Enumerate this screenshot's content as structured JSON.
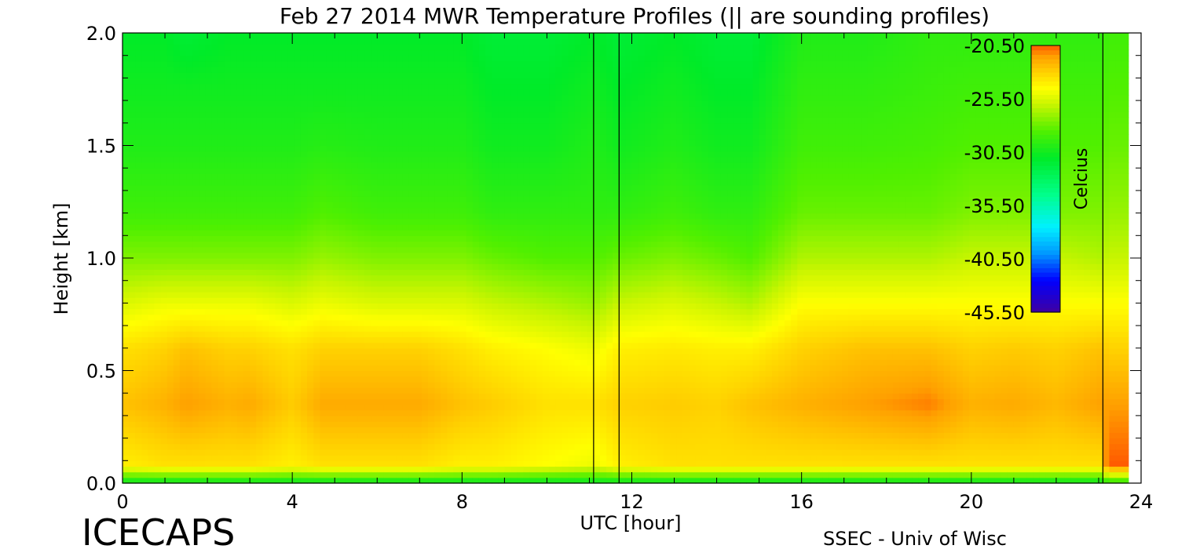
{
  "chart_data": {
    "type": "heatmap",
    "title": "Feb 27 2014 MWR Temperature Profiles (|| are sounding profiles)",
    "xlabel": "UTC [hour]",
    "ylabel": "Height [km]",
    "xlim": [
      0,
      24
    ],
    "ylim": [
      0,
      2.0
    ],
    "x_ticks": [
      "0",
      "4",
      "8",
      "12",
      "16",
      "20",
      "24"
    ],
    "y_ticks": [
      "0.0",
      "0.5",
      "1.0",
      "1.5",
      "2.0"
    ],
    "colorbar": {
      "label": "Celcius",
      "ticks": [
        "-20.50",
        "-25.50",
        "-30.50",
        "-35.50",
        "-40.50",
        "-45.50"
      ],
      "range": [
        -45.5,
        -20.5
      ]
    },
    "sounding_markers_hour": [
      11.1,
      11.7,
      23.1
    ],
    "columns": [
      {
        "hour": 0.0,
        "profile": [
          -31,
          -24,
          -22.5,
          -23.5,
          -25.5,
          -27.5,
          -29,
          -30,
          -30.5,
          -31
        ]
      },
      {
        "hour": 1.0,
        "profile": [
          -31,
          -23.5,
          -22,
          -23,
          -25,
          -27.5,
          -29,
          -30,
          -30.5,
          -31
        ]
      },
      {
        "hour": 1.5,
        "profile": [
          -31,
          -23.5,
          -21.5,
          -22.5,
          -25,
          -27.5,
          -29,
          -30,
          -30.5,
          -31.5
        ]
      },
      {
        "hour": 2.5,
        "profile": [
          -31,
          -23.5,
          -22,
          -23,
          -25,
          -27.5,
          -29,
          -30,
          -30.5,
          -31
        ]
      },
      {
        "hour": 3.0,
        "profile": [
          -31,
          -23.5,
          -21.8,
          -23,
          -25,
          -27.5,
          -29,
          -30,
          -30.5,
          -31
        ]
      },
      {
        "hour": 4.0,
        "profile": [
          -31,
          -24,
          -22.8,
          -23.5,
          -25.5,
          -27.5,
          -29,
          -30,
          -30.5,
          -31
        ]
      },
      {
        "hour": 4.7,
        "profile": [
          -31,
          -23.5,
          -21.8,
          -23,
          -25,
          -27,
          -28.5,
          -29.8,
          -30.5,
          -31
        ]
      },
      {
        "hour": 6.0,
        "profile": [
          -31,
          -23.5,
          -21.8,
          -23,
          -25.5,
          -27.5,
          -29,
          -30,
          -30.5,
          -31
        ]
      },
      {
        "hour": 7.0,
        "profile": [
          -31,
          -23.5,
          -21.8,
          -23,
          -25.5,
          -27.5,
          -29,
          -30,
          -30.5,
          -31
        ]
      },
      {
        "hour": 8.0,
        "profile": [
          -31,
          -24,
          -22.5,
          -23.5,
          -25.5,
          -27.5,
          -29,
          -30,
          -30.5,
          -31
        ]
      },
      {
        "hour": 8.7,
        "profile": [
          -31,
          -24,
          -22.8,
          -24,
          -26,
          -28,
          -29.5,
          -30.5,
          -31,
          -31.5
        ]
      },
      {
        "hour": 10.0,
        "profile": [
          -31,
          -24.5,
          -23.5,
          -24.5,
          -26.5,
          -28.5,
          -29.5,
          -30.5,
          -31,
          -31.5
        ]
      },
      {
        "hour": 11.1,
        "profile": [
          -31,
          -25,
          -23.5,
          -25,
          -27,
          -28.5,
          -29.5,
          -30,
          -30.5,
          -31
        ]
      },
      {
        "hour": 11.7,
        "profile": [
          -31,
          -24,
          -23,
          -24,
          -26,
          -28,
          -29.5,
          -30.5,
          -31,
          -31.5
        ]
      },
      {
        "hour": 13.0,
        "profile": [
          -31,
          -23.5,
          -22.8,
          -23.8,
          -25.5,
          -27.5,
          -29,
          -30,
          -30.5,
          -31
        ]
      },
      {
        "hour": 14.0,
        "profile": [
          -31,
          -23.5,
          -23,
          -24,
          -26,
          -28,
          -29.5,
          -30.5,
          -31,
          -31.5
        ]
      },
      {
        "hour": 14.8,
        "profile": [
          -31,
          -23.5,
          -22.5,
          -24,
          -26.5,
          -28.5,
          -29.5,
          -30.5,
          -31,
          -31.5
        ]
      },
      {
        "hour": 16.0,
        "profile": [
          -31,
          -23.5,
          -22,
          -23,
          -24.5,
          -26.5,
          -28,
          -29,
          -29.5,
          -30
        ]
      },
      {
        "hour": 17.5,
        "profile": [
          -31,
          -23.5,
          -21.5,
          -22.5,
          -24.5,
          -26.5,
          -28,
          -29,
          -29.5,
          -30
        ]
      },
      {
        "hour": 19.0,
        "profile": [
          -31,
          -23.5,
          -21,
          -22.5,
          -24.5,
          -26.5,
          -28,
          -28.8,
          -29.2,
          -29.5
        ]
      },
      {
        "hour": 20.0,
        "profile": [
          -31,
          -23.5,
          -22,
          -23,
          -24.5,
          -26,
          -27.5,
          -28.5,
          -29,
          -29.5
        ]
      },
      {
        "hour": 21.0,
        "profile": [
          -31,
          -23.5,
          -21.8,
          -22.8,
          -24.5,
          -26,
          -27.5,
          -28.5,
          -29,
          -29.5
        ]
      },
      {
        "hour": 22.0,
        "profile": [
          -31,
          -23.5,
          -22.2,
          -23,
          -24.5,
          -26,
          -27.5,
          -28.5,
          -29,
          -29.5
        ]
      },
      {
        "hour": 23.1,
        "profile": [
          -31,
          -23.5,
          -21.5,
          -22.5,
          -24.5,
          -26.5,
          -27.5,
          -28.5,
          -29,
          -29.5
        ]
      },
      {
        "hour": 23.2,
        "profile": [
          -30,
          -20.5,
          -21.5,
          -23,
          -24.5,
          -26,
          -27,
          -28,
          -28.5,
          -29
        ]
      },
      {
        "hour": 23.6,
        "profile": [
          -30,
          -20.5,
          -21.5,
          -23,
          -24.5,
          -26,
          -27,
          -28,
          -28.5,
          -29
        ]
      }
    ],
    "profile_heights_km": [
      0.0,
      0.08,
      0.35,
      0.6,
      0.8,
      1.0,
      1.2,
      1.5,
      1.75,
      2.0
    ]
  },
  "footer": {
    "left": "ICECAPS",
    "right": "SSEC - Univ of Wisc"
  }
}
